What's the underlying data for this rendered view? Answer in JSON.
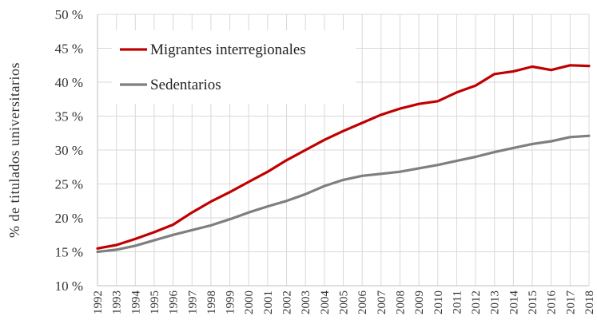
{
  "chart_data": {
    "type": "line",
    "ylabel": "% de titulados universitarios",
    "xlabel": "",
    "ylim": [
      10,
      50
    ],
    "ytick_step": 5,
    "y_tick_suffix": " %",
    "grid": true,
    "legend_position": "top-left",
    "x": [
      1992,
      1993,
      1994,
      1995,
      1996,
      1997,
      1998,
      1999,
      2000,
      2001,
      2002,
      2003,
      2004,
      2005,
      2006,
      2007,
      2008,
      2009,
      2010,
      2011,
      2012,
      2013,
      2014,
      2015,
      2016,
      2017,
      2018
    ],
    "series": [
      {
        "name": "Migrantes interregionales",
        "color": "#c00000",
        "values": [
          15.5,
          16.0,
          16.9,
          17.9,
          19.0,
          20.8,
          22.4,
          23.8,
          25.3,
          26.8,
          28.5,
          30.0,
          31.5,
          32.8,
          34.0,
          35.2,
          36.1,
          36.8,
          37.2,
          38.5,
          39.5,
          41.2,
          41.6,
          42.3,
          41.8,
          42.5,
          42.4
        ]
      },
      {
        "name": "Sedentarios",
        "color": "#7f7f7f",
        "values": [
          15.0,
          15.3,
          15.9,
          16.7,
          17.5,
          18.2,
          18.9,
          19.8,
          20.8,
          21.7,
          22.5,
          23.5,
          24.7,
          25.6,
          26.2,
          26.5,
          26.8,
          27.3,
          27.8,
          28.4,
          29.0,
          29.7,
          30.3,
          30.9,
          31.3,
          31.9,
          32.1
        ]
      }
    ]
  }
}
